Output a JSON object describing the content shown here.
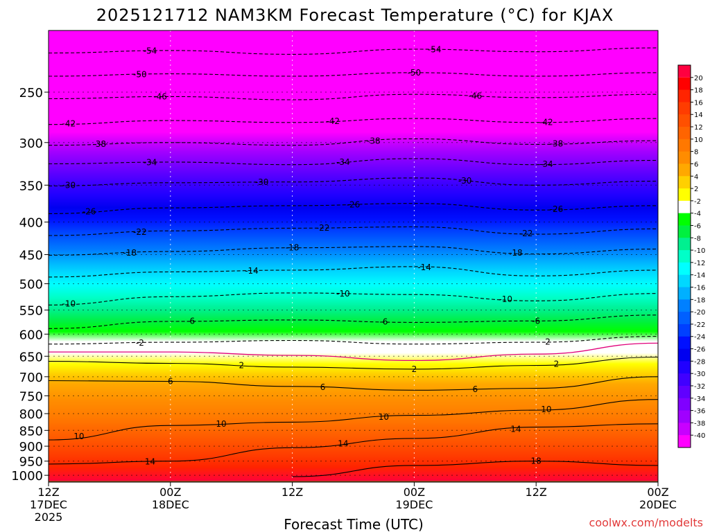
{
  "chart_data": {
    "type": "heatmap",
    "title": "2025121712 NAM3KM Forecast Temperature (°C) for KJAX",
    "xlabel": "Forecast Time (UTC)",
    "ylabel": "",
    "credit": "coolwx.com/modelts",
    "x_ticks": [
      {
        "hour": 0,
        "lines": [
          "12Z",
          "17DEC",
          "2025"
        ]
      },
      {
        "hour": 12,
        "lines": [
          "00Z",
          "18DEC"
        ]
      },
      {
        "hour": 24,
        "lines": [
          "12Z"
        ]
      },
      {
        "hour": 36,
        "lines": [
          "00Z",
          "19DEC"
        ]
      },
      {
        "hour": 48,
        "lines": [
          "12Z"
        ]
      },
      {
        "hour": 60,
        "lines": [
          "00Z",
          "20DEC"
        ]
      }
    ],
    "xlim": [
      0,
      60
    ],
    "y_ticks": [
      "250",
      "300",
      "350",
      "400",
      "450",
      "500",
      "550",
      "600",
      "650",
      "700",
      "750",
      "800",
      "850",
      "900",
      "950",
      "1000"
    ],
    "y_tick_values": [
      250,
      300,
      350,
      400,
      450,
      500,
      550,
      600,
      650,
      700,
      750,
      800,
      850,
      900,
      950,
      1000
    ],
    "ylim_hpa": [
      200,
      1025
    ],
    "ground_level_hpa": 1020,
    "colorbar": {
      "labels": [
        "20",
        "18",
        "16",
        "14",
        "12",
        "10",
        "8",
        "6",
        "4",
        "2",
        "-2",
        "-4",
        "-6",
        "-8",
        "-10",
        "-12",
        "-14",
        "-16",
        "-18",
        "-20",
        "-22",
        "-24",
        "-26",
        "-28",
        "-30",
        "-32",
        "-34",
        "-36",
        "-38",
        "-40"
      ],
      "colors": [
        "#ff0000",
        "#ff2400",
        "#ff3c00",
        "#ff5000",
        "#ff6400",
        "#ff7800",
        "#ff8c00",
        "#ffa800",
        "#ffd000",
        "#ffff00",
        "#ffffff",
        "#00ff00",
        "#00f040",
        "#00f090",
        "#00ffc8",
        "#00ffff",
        "#00d8ff",
        "#00b0ff",
        "#0080ff",
        "#0060ff",
        "#0040ff",
        "#0010ff",
        "#0000f0",
        "#2000ff",
        "#4000ff",
        "#6000ff",
        "#8000ff",
        "#a000ff",
        "#c800ff",
        "#ff00ff"
      ],
      "top_color": "#ff0040",
      "bottom_color": "#ff00ff"
    },
    "series": [
      {
        "name": "-54",
        "levels": [
          [
            0,
            217
          ],
          [
            12,
            215
          ],
          [
            24,
            218
          ],
          [
            36,
            214
          ],
          [
            48,
            216
          ],
          [
            60,
            213
          ]
        ],
        "labels": [
          {
            "hour": 10,
            "text": "-54"
          },
          {
            "hour": 38,
            "text": "-54"
          }
        ]
      },
      {
        "name": "-50",
        "levels": [
          [
            0,
            236
          ],
          [
            12,
            234
          ],
          [
            24,
            236
          ],
          [
            36,
            233
          ],
          [
            48,
            236
          ],
          [
            60,
            233
          ]
        ],
        "labels": [
          {
            "hour": 9,
            "text": "-50"
          },
          {
            "hour": 36,
            "text": "-50"
          }
        ]
      },
      {
        "name": "-46",
        "levels": [
          [
            0,
            256
          ],
          [
            12,
            254
          ],
          [
            24,
            257
          ],
          [
            36,
            252
          ],
          [
            48,
            255
          ],
          [
            60,
            252
          ]
        ],
        "labels": [
          {
            "hour": 11,
            "text": "-46"
          },
          {
            "hour": 42,
            "text": "-46"
          }
        ]
      },
      {
        "name": "-42",
        "levels": [
          [
            0,
            281
          ],
          [
            12,
            277
          ],
          [
            24,
            279
          ],
          [
            36,
            275
          ],
          [
            48,
            279
          ],
          [
            60,
            275
          ]
        ],
        "labels": [
          {
            "hour": 2,
            "text": "-42"
          },
          {
            "hour": 28,
            "text": "-42"
          },
          {
            "hour": 49,
            "text": "-42"
          }
        ]
      },
      {
        "name": "-38",
        "levels": [
          [
            0,
            303
          ],
          [
            12,
            300
          ],
          [
            24,
            303
          ],
          [
            36,
            296
          ],
          [
            48,
            302
          ],
          [
            60,
            298
          ]
        ],
        "labels": [
          {
            "hour": 5,
            "text": "-38"
          },
          {
            "hour": 32,
            "text": "-38"
          },
          {
            "hour": 50,
            "text": "-38"
          }
        ]
      },
      {
        "name": "-34",
        "levels": [
          [
            0,
            324
          ],
          [
            12,
            322
          ],
          [
            24,
            325
          ],
          [
            36,
            318
          ],
          [
            48,
            325
          ],
          [
            60,
            320
          ]
        ],
        "labels": [
          {
            "hour": 10,
            "text": "-34"
          },
          {
            "hour": 29,
            "text": "-34"
          },
          {
            "hour": 49,
            "text": "-34"
          }
        ]
      },
      {
        "name": "-30",
        "levels": [
          [
            0,
            351
          ],
          [
            12,
            347
          ],
          [
            24,
            346
          ],
          [
            36,
            341
          ],
          [
            48,
            350
          ],
          [
            60,
            345
          ]
        ],
        "labels": [
          {
            "hour": 2,
            "text": "-30"
          },
          {
            "hour": 21,
            "text": "-30"
          },
          {
            "hour": 41,
            "text": "-30"
          }
        ]
      },
      {
        "name": "-26",
        "levels": [
          [
            0,
            388
          ],
          [
            12,
            380
          ],
          [
            24,
            377
          ],
          [
            36,
            374
          ],
          [
            48,
            383
          ],
          [
            60,
            377
          ]
        ],
        "labels": [
          {
            "hour": 4,
            "text": "-26"
          },
          {
            "hour": 30,
            "text": "-26"
          },
          {
            "hour": 50,
            "text": "-26"
          }
        ]
      },
      {
        "name": "-22",
        "levels": [
          [
            0,
            420
          ],
          [
            12,
            413
          ],
          [
            24,
            409
          ],
          [
            36,
            407
          ],
          [
            48,
            418
          ],
          [
            60,
            410
          ]
        ],
        "labels": [
          {
            "hour": 9,
            "text": "-22"
          },
          {
            "hour": 27,
            "text": "-22"
          },
          {
            "hour": 47,
            "text": "-22"
          }
        ]
      },
      {
        "name": "-18",
        "levels": [
          [
            0,
            451
          ],
          [
            12,
            445
          ],
          [
            24,
            439
          ],
          [
            36,
            437
          ],
          [
            48,
            449
          ],
          [
            60,
            441
          ]
        ],
        "labels": [
          {
            "hour": 8,
            "text": "-18"
          },
          {
            "hour": 24,
            "text": "-18"
          },
          {
            "hour": 46,
            "text": "-18"
          }
        ]
      },
      {
        "name": "-14",
        "levels": [
          [
            0,
            488
          ],
          [
            12,
            479
          ],
          [
            24,
            476
          ],
          [
            36,
            470
          ],
          [
            48,
            486
          ],
          [
            60,
            476
          ]
        ],
        "labels": [
          {
            "hour": 20,
            "text": "-14"
          },
          {
            "hour": 37,
            "text": "-14"
          }
        ]
      },
      {
        "name": "-10",
        "levels": [
          [
            0,
            540
          ],
          [
            12,
            524
          ],
          [
            24,
            517
          ],
          [
            36,
            520
          ],
          [
            48,
            532
          ],
          [
            60,
            518
          ]
        ],
        "labels": [
          {
            "hour": 2,
            "text": "-10"
          },
          {
            "hour": 29,
            "text": "-10"
          },
          {
            "hour": 45,
            "text": "-10"
          }
        ]
      },
      {
        "name": "-6",
        "levels": [
          [
            0,
            588
          ],
          [
            12,
            573
          ],
          [
            24,
            570
          ],
          [
            36,
            575
          ],
          [
            48,
            572
          ],
          [
            60,
            560
          ]
        ],
        "labels": [
          {
            "hour": 14,
            "text": "-6"
          },
          {
            "hour": 33,
            "text": "-6"
          },
          {
            "hour": 48,
            "text": "-6"
          }
        ]
      },
      {
        "name": "-2",
        "levels": [
          [
            0,
            622
          ],
          [
            12,
            618
          ],
          [
            24,
            614
          ],
          [
            36,
            622
          ],
          [
            48,
            618
          ],
          [
            60,
            605
          ]
        ],
        "labels": [
          {
            "hour": 9,
            "text": "-2"
          },
          {
            "hour": 49,
            "text": "-2"
          }
        ]
      },
      {
        "name": "2",
        "levels": [
          [
            0,
            662
          ],
          [
            12,
            667
          ],
          [
            24,
            676
          ],
          [
            36,
            681
          ],
          [
            48,
            672
          ],
          [
            60,
            652
          ]
        ],
        "labels": [
          {
            "hour": 19,
            "text": "2"
          },
          {
            "hour": 36,
            "text": "2"
          },
          {
            "hour": 50,
            "text": "2"
          }
        ]
      },
      {
        "name": "6",
        "levels": [
          [
            0,
            710
          ],
          [
            12,
            712
          ],
          [
            24,
            725
          ],
          [
            36,
            735
          ],
          [
            48,
            730
          ],
          [
            60,
            700
          ]
        ],
        "labels": [
          {
            "hour": 12,
            "text": "6"
          },
          {
            "hour": 27,
            "text": "6"
          },
          {
            "hour": 42,
            "text": "6"
          }
        ]
      },
      {
        "name": "10",
        "levels": [
          [
            0,
            880
          ],
          [
            12,
            835
          ],
          [
            24,
            825
          ],
          [
            36,
            805
          ],
          [
            48,
            790
          ],
          [
            60,
            760
          ]
        ],
        "labels": [
          {
            "hour": 3,
            "text": "10"
          },
          {
            "hour": 17,
            "text": "10"
          },
          {
            "hour": 33,
            "text": "10"
          },
          {
            "hour": 49,
            "text": "10"
          }
        ]
      },
      {
        "name": "14",
        "levels": [
          [
            0,
            960
          ],
          [
            12,
            950
          ],
          [
            24,
            905
          ],
          [
            36,
            875
          ],
          [
            48,
            840
          ],
          [
            60,
            830
          ]
        ],
        "labels": [
          {
            "hour": 10,
            "text": "14"
          },
          {
            "hour": 29,
            "text": "14"
          },
          {
            "hour": 46,
            "text": "14"
          }
        ]
      },
      {
        "name": "18",
        "levels": [
          [
            24,
            1005
          ],
          [
            36,
            965
          ],
          [
            48,
            950
          ],
          [
            60,
            965
          ]
        ],
        "labels": [
          {
            "hour": 48,
            "text": "18"
          }
        ]
      }
    ],
    "freezing_line": {
      "name": "0",
      "levels": [
        [
          0,
          640
        ],
        [
          12,
          640
        ],
        [
          24,
          648
        ],
        [
          36,
          660
        ],
        [
          48,
          645
        ],
        [
          60,
          620
        ]
      ]
    }
  }
}
